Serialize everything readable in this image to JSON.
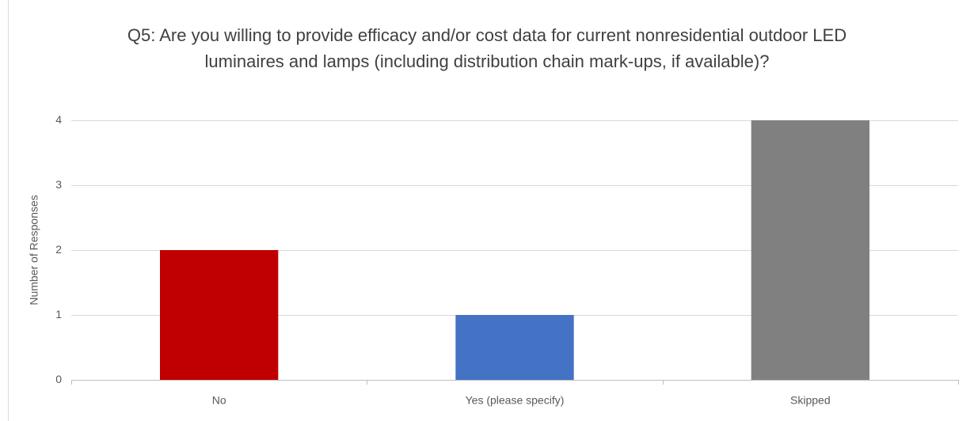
{
  "chart_data": {
    "type": "bar",
    "title": "Q5: Are you willing to provide efficacy and/or cost data for current nonresidential outdoor LED luminaires and lamps (including distribution chain mark-ups, if available)?",
    "y_label": "Number of Responses",
    "categories": [
      "No",
      "Yes (please specify)",
      "Skipped"
    ],
    "values": [
      2,
      1,
      4
    ],
    "colors": [
      "#c00000",
      "#4472c4",
      "#808080"
    ],
    "ylim": [
      0,
      4
    ],
    "yticks": [
      0,
      1,
      2,
      3,
      4
    ],
    "grid": true
  }
}
